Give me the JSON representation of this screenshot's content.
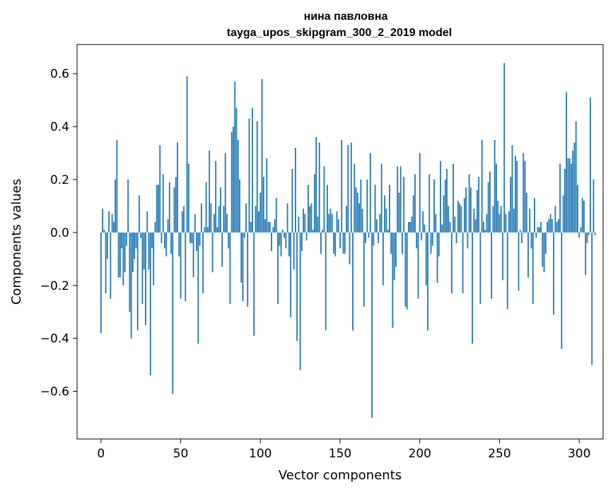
{
  "chart_data": {
    "type": "bar",
    "title": "нина павловна",
    "subtitle": "tayga_upos_skipgram_300_2_2019 model",
    "xlabel": "Vector components",
    "ylabel": "Components values",
    "xlim": [
      -15,
      315
    ],
    "ylim": [
      -0.78,
      0.71
    ],
    "x_ticks": [
      0,
      50,
      100,
      150,
      200,
      250,
      300
    ],
    "y_ticks": [
      -0.6,
      -0.4,
      -0.2,
      0.0,
      0.2,
      0.4,
      0.6
    ],
    "x_tick_labels": [
      "0",
      "50",
      "100",
      "150",
      "200",
      "250",
      "300"
    ],
    "y_tick_labels": [
      "−0.6",
      "−0.4",
      "−0.2",
      "0.0",
      "0.2",
      "0.4",
      "0.6"
    ],
    "bar_color": "#1f77b4",
    "grid": false,
    "values": [
      -0.38,
      0.09,
      0.01,
      -0.23,
      -0.1,
      0.08,
      -0.25,
      0.07,
      0.04,
      0.2,
      0.35,
      -0.17,
      -0.17,
      -0.06,
      -0.2,
      -0.15,
      -0.05,
      0.2,
      -0.3,
      -0.4,
      -0.15,
      -0.1,
      -0.06,
      -0.37,
      0.14,
      -0.02,
      -0.27,
      -0.14,
      -0.35,
      0.08,
      -0.14,
      -0.54,
      -0.06,
      -0.2,
      0.04,
      0.18,
      0.18,
      0.33,
      -0.04,
      0.22,
      -0.06,
      -0.09,
      0.05,
      0.19,
      -0.08,
      -0.61,
      0.17,
      0.21,
      0.34,
      -0.09,
      -0.25,
      0.08,
      0.1,
      -0.26,
      0.59,
      0.26,
      -0.04,
      -0.04,
      -0.17,
      0.07,
      -0.07,
      -0.42,
      -0.05,
      0.11,
      -0.23,
      0.02,
      0.19,
      0.02,
      0.31,
      0.11,
      -0.15,
      0.07,
      0.27,
      0.02,
      0.1,
      0.17,
      -0.13,
      0.1,
      0.3,
      0.07,
      -0.06,
      -0.27,
      0.38,
      0.4,
      0.57,
      0.47,
      0.35,
      0.2,
      -0.19,
      -0.26,
      -0.02,
      0.11,
      -0.28,
      0.43,
      0.04,
      0.47,
      -0.39,
      0.1,
      0.42,
      0.08,
      0.15,
      0.58,
      0.21,
      0.05,
      0.28,
      0.04,
      0.04,
      -0.07,
      0.02,
      0.05,
      0.13,
      -0.27,
      -0.05,
      -0.09,
      0.01,
      -0.02,
      -0.06,
      0.11,
      -0.09,
      -0.32,
      0.24,
      -0.14,
      0.32,
      -0.41,
      0.06,
      -0.52,
      -0.07,
      0.09,
      0.07,
      -0.03,
      0.18,
      0.1,
      0.11,
      0.01,
      0.22,
      0.36,
      0.06,
      0.34,
      -0.08,
      0.01,
      0.25,
      -0.37,
      0.18,
      0.07,
      0.09,
      0.07,
      -0.08,
      -0.09,
      0.08,
      0.05,
      -0.06,
      0.35,
      -0.08,
      -0.08,
      0.1,
      0.33,
      -0.12,
      0.34,
      -0.37,
      0.26,
      0.17,
      0.15,
      0.11,
      0.2,
      0.09,
      -0.28,
      -0.04,
      0.2,
      -0.02,
      0.3,
      -0.7,
      -0.05,
      0.18,
      0.05,
      -0.04,
      0.07,
      0.26,
      -0.2,
      0.14,
      0.09,
      0.01,
      0.18,
      -0.08,
      -0.36,
      -0.18,
      -0.13,
      0.25,
      0.15,
      0.25,
      -0.08,
      0.21,
      -0.28,
      -0.29,
      0.04,
      0.04,
      0.06,
      0.14,
      0.22,
      -0.06,
      -0.25,
      0.3,
      -0.03,
      0.08,
      0.03,
      -0.2,
      -0.37,
      0.22,
      -0.08,
      -0.05,
      0.2,
      0.07,
      -0.19,
      -0.09,
      0.27,
      0.03,
      0.14,
      0.2,
      0.24,
      0.1,
      0.04,
      -0.23,
      0.26,
      0.06,
      -0.04,
      0.12,
      0.11,
      0.1,
      -0.23,
      0.13,
      0.17,
      -0.06,
      0.22,
      0.17,
      -0.42,
      0.09,
      0.05,
      0.16,
      0.21,
      -0.27,
      0.35,
      0.04,
      0.01,
      0.07,
      0.19,
      0.23,
      -0.25,
      0.1,
      0.35,
      0.26,
      0.12,
      0.07,
      0.1,
      -0.18,
      0.64,
      0.07,
      -0.29,
      0.08,
      0.21,
      0.33,
      0.09,
      0.29,
      0.27,
      -0.22,
      0.01,
      -0.04,
      0.3,
      0.27,
      0.15,
      -0.17,
      0.09,
      -0.06,
      -0.27,
      0.13,
      -0.02,
      0.02,
      0.02,
      0.04,
      -0.13,
      -0.15,
      -0.08,
      0.04,
      0.05,
      0.07,
      0.05,
      -0.31,
      0.1,
      0.04,
      0.05,
      0.26,
      -0.44,
      0.14,
      0.24,
      0.53,
      0.28,
      0.28,
      0.26,
      0.31,
      0.34,
      0.42,
      0.18,
      -0.02,
      0.02,
      0.13,
      0.12,
      -0.16,
      -0.04,
      -0.01,
      0.51,
      -0.5,
      0.2,
      -0.01
    ]
  }
}
